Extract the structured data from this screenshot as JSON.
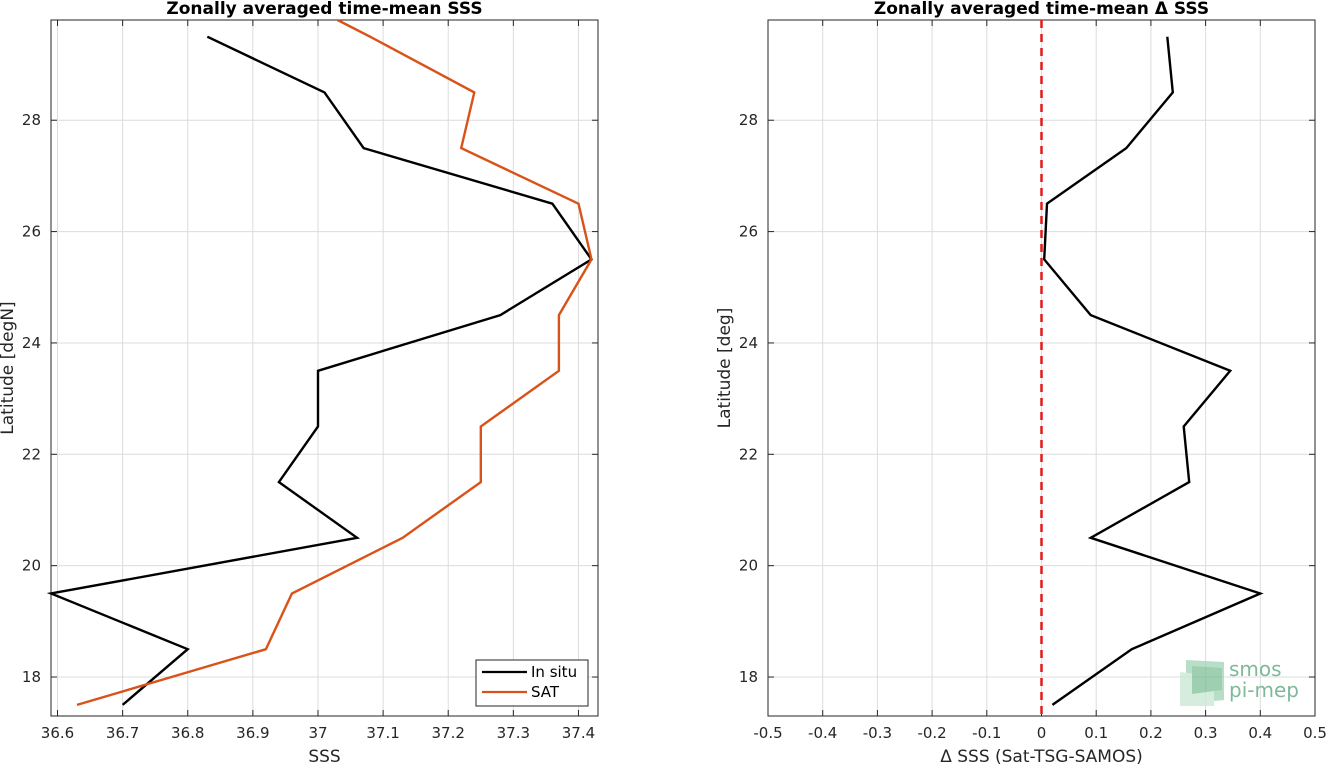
{
  "colors": {
    "in_situ": "#000000",
    "sat": "#d95319",
    "zero_line": "#e41a1c",
    "grid": "#dcdcdc",
    "axis": "#262626",
    "logo": "#7fb89a"
  },
  "logo": {
    "line1": "smos",
    "line2": "pi-mep"
  },
  "chart_data": [
    {
      "type": "line",
      "title": "Zonally averaged time-mean SSS",
      "xlabel": "SSS",
      "ylabel": "Latitude [degN]",
      "xlim": [
        36.59,
        37.43
      ],
      "ylim": [
        17.3,
        29.8
      ],
      "xticks": [
        36.6,
        36.7,
        36.8,
        36.9,
        37,
        37.1,
        37.2,
        37.3,
        37.4
      ],
      "yticks": [
        18,
        20,
        22,
        24,
        26,
        28
      ],
      "grid": true,
      "legend": "bottom-right",
      "series": [
        {
          "name": "In situ",
          "color_key": "in_situ",
          "points": [
            [
              36.7,
              17.5
            ],
            [
              36.8,
              18.5
            ],
            [
              36.59,
              19.5
            ],
            [
              37.06,
              20.5
            ],
            [
              36.94,
              21.5
            ],
            [
              37.0,
              22.5
            ],
            [
              37.0,
              23.5
            ],
            [
              37.28,
              24.5
            ],
            [
              37.42,
              25.5
            ],
            [
              37.36,
              26.5
            ],
            [
              37.07,
              27.5
            ],
            [
              37.01,
              28.5
            ],
            [
              36.83,
              29.5
            ]
          ]
        },
        {
          "name": "SAT",
          "color_key": "sat",
          "points": [
            [
              36.63,
              17.5
            ],
            [
              36.92,
              18.5
            ],
            [
              36.96,
              19.5
            ],
            [
              37.13,
              20.5
            ],
            [
              37.25,
              21.5
            ],
            [
              37.25,
              22.5
            ],
            [
              37.37,
              23.5
            ],
            [
              37.37,
              24.5
            ],
            [
              37.42,
              25.5
            ],
            [
              37.4,
              26.5
            ],
            [
              37.22,
              27.5
            ],
            [
              37.24,
              28.5
            ],
            [
              37.08,
              29.5
            ],
            [
              37.03,
              29.8
            ]
          ]
        }
      ]
    },
    {
      "type": "line",
      "title": "Zonally averaged time-mean Δ SSS",
      "xlabel": "Δ SSS (Sat-TSG-SAMOS)",
      "ylabel": "Latitude [deg]",
      "xlim": [
        -0.5,
        0.5
      ],
      "ylim": [
        17.3,
        29.8
      ],
      "xticks": [
        -0.5,
        -0.4,
        -0.3,
        -0.2,
        -0.1,
        0,
        0.1,
        0.2,
        0.3,
        0.4,
        0.5
      ],
      "yticks": [
        18,
        20,
        22,
        24,
        26,
        28
      ],
      "grid": true,
      "reference_line_x": 0,
      "series": [
        {
          "color_key": "in_situ",
          "points": [
            [
              0.02,
              17.5
            ],
            [
              0.165,
              18.5
            ],
            [
              0.4,
              19.5
            ],
            [
              0.09,
              20.5
            ],
            [
              0.27,
              21.5
            ],
            [
              0.26,
              22.5
            ],
            [
              0.345,
              23.5
            ],
            [
              0.09,
              24.5
            ],
            [
              0.005,
              25.5
            ],
            [
              0.01,
              26.5
            ],
            [
              0.155,
              27.5
            ],
            [
              0.24,
              28.5
            ],
            [
              0.23,
              29.5
            ]
          ]
        }
      ]
    }
  ]
}
